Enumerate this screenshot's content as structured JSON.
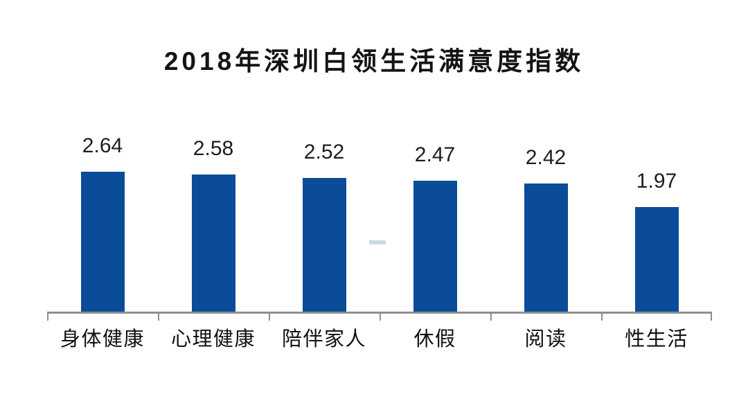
{
  "chart_data": {
    "type": "bar",
    "title": "2018年深圳白领生活满意度指数",
    "categories": [
      "身体健康",
      "心理健康",
      "陪伴家人",
      "休假",
      "阅读",
      "性生活"
    ],
    "values": [
      2.64,
      2.58,
      2.52,
      2.47,
      2.42,
      1.97
    ],
    "data_labels": [
      "2.64",
      "2.58",
      "2.52",
      "2.47",
      "2.42",
      "1.97"
    ],
    "xlabel": "",
    "ylabel": "",
    "ylim": [
      0,
      2.8
    ],
    "grid": false,
    "legend": false,
    "bar_color": "#0b4c99",
    "axis_color": "#8e8e8e",
    "title_color": "#141414",
    "label_color": "#1d1d1d"
  }
}
